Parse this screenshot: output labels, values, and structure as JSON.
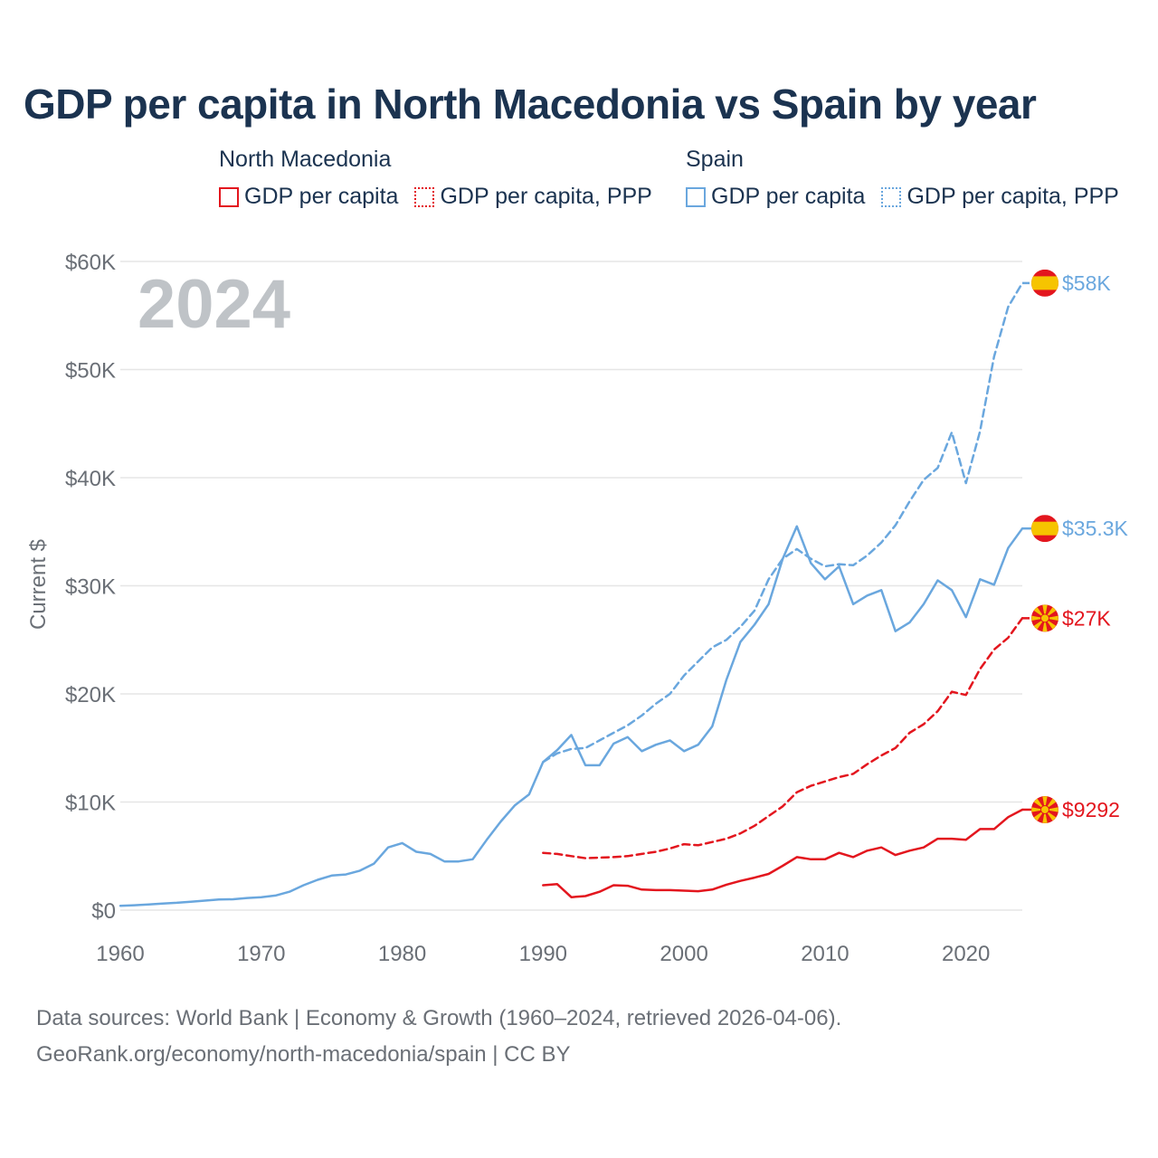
{
  "title": "GDP per capita in North Macedonia vs Spain by year",
  "legend": {
    "north_macedonia": {
      "name": "North Macedonia",
      "gdp": "GDP per capita",
      "ppp": "GDP per capita, PPP"
    },
    "spain": {
      "name": "Spain",
      "gdp": "GDP per capita",
      "ppp": "GDP per capita, PPP"
    }
  },
  "year_watermark": "2024",
  "footer": {
    "line1": "Data sources: World Bank | Economy & Growth (1960–2024, retrieved 2026-04-06).",
    "line2": "GeoRank.org/economy/north-macedonia/spain | CC BY"
  },
  "colors": {
    "north_macedonia": "#e3161e",
    "spain": "#6aa7de",
    "grid": "#e6e6e6",
    "axis_text": "#6a6f76",
    "watermark": "#bfc3c7"
  },
  "chart_data": {
    "type": "line",
    "title": "GDP per capita in North Macedonia vs Spain by year",
    "xlabel": "",
    "ylabel": "Current $",
    "xlim": [
      1960,
      2024
    ],
    "ylim": [
      0,
      60000
    ],
    "x_ticks": [
      1960,
      1970,
      1980,
      1990,
      2000,
      2010,
      2020
    ],
    "x_tick_labels": [
      "1960",
      "1970",
      "1980",
      "1990",
      "2000",
      "2010",
      "2020"
    ],
    "y_ticks": [
      0,
      10000,
      20000,
      30000,
      40000,
      50000,
      60000
    ],
    "y_tick_labels": [
      "$0",
      "$10K",
      "$20K",
      "$30K",
      "$40K",
      "$50K",
      "$60K"
    ],
    "series": [
      {
        "name": "Spain GDP per capita, PPP",
        "country": "spain",
        "style": "dashed",
        "end_label": "$58K",
        "x": [
          1990,
          1991,
          1992,
          1993,
          1994,
          1995,
          1996,
          1997,
          1998,
          1999,
          2000,
          2001,
          2002,
          2003,
          2004,
          2005,
          2006,
          2007,
          2008,
          2009,
          2010,
          2011,
          2012,
          2013,
          2014,
          2015,
          2016,
          2017,
          2018,
          2019,
          2020,
          2021,
          2022,
          2023,
          2024
        ],
        "values": [
          13700,
          14500,
          14900,
          15000,
          15700,
          16400,
          17100,
          18000,
          19100,
          20000,
          21700,
          23000,
          24300,
          25000,
          26200,
          27700,
          30600,
          32500,
          33400,
          32500,
          31800,
          32000,
          31900,
          32800,
          34000,
          35600,
          37800,
          39800,
          40900,
          44200,
          39500,
          44300,
          51200,
          55800,
          58000
        ]
      },
      {
        "name": "Spain GDP per capita",
        "country": "spain",
        "style": "solid",
        "end_label": "$35.3K",
        "x": [
          1960,
          1961,
          1962,
          1963,
          1964,
          1965,
          1966,
          1967,
          1968,
          1969,
          1970,
          1971,
          1972,
          1973,
          1974,
          1975,
          1976,
          1977,
          1978,
          1979,
          1980,
          1981,
          1982,
          1983,
          1984,
          1985,
          1986,
          1987,
          1988,
          1989,
          1990,
          1991,
          1992,
          1993,
          1994,
          1995,
          1996,
          1997,
          1998,
          1999,
          2000,
          2001,
          2002,
          2003,
          2004,
          2005,
          2006,
          2007,
          2008,
          2009,
          2010,
          2011,
          2012,
          2013,
          2014,
          2015,
          2016,
          2017,
          2018,
          2019,
          2020,
          2021,
          2022,
          2023,
          2024
        ],
        "values": [
          400,
          450,
          530,
          610,
          680,
          780,
          880,
          980,
          1000,
          1120,
          1200,
          1350,
          1700,
          2300,
          2800,
          3200,
          3300,
          3650,
          4300,
          5800,
          6200,
          5400,
          5200,
          4500,
          4500,
          4700,
          6500,
          8200,
          9700,
          10700,
          13700,
          14800,
          16200,
          13400,
          13400,
          15400,
          16000,
          14700,
          15300,
          15700,
          14700,
          15300,
          17000,
          21300,
          24800,
          26400,
          28300,
          32500,
          35500,
          32100,
          30600,
          31800,
          28300,
          29100,
          29600,
          25800,
          26600,
          28300,
          30500,
          29600,
          27100,
          30600,
          30100,
          33500,
          35300
        ]
      },
      {
        "name": "North Macedonia GDP per capita, PPP",
        "country": "north_macedonia",
        "style": "dashed",
        "end_label": "$27K",
        "x": [
          1990,
          1991,
          1992,
          1993,
          1994,
          1995,
          1996,
          1997,
          1998,
          1999,
          2000,
          2001,
          2002,
          2003,
          2004,
          2005,
          2006,
          2007,
          2008,
          2009,
          2010,
          2011,
          2012,
          2013,
          2014,
          2015,
          2016,
          2017,
          2018,
          2019,
          2020,
          2021,
          2022,
          2023,
          2024
        ],
        "values": [
          5300,
          5200,
          5000,
          4800,
          4850,
          4900,
          5000,
          5200,
          5400,
          5700,
          6100,
          6000,
          6300,
          6600,
          7100,
          7800,
          8700,
          9600,
          10900,
          11500,
          11900,
          12300,
          12600,
          13500,
          14300,
          15000,
          16400,
          17200,
          18400,
          20200,
          19900,
          22300,
          24100,
          25200,
          27000
        ]
      },
      {
        "name": "North Macedonia GDP per capita",
        "country": "north_macedonia",
        "style": "solid",
        "end_label": "$9292",
        "x": [
          1990,
          1991,
          1992,
          1993,
          1994,
          1995,
          1996,
          1997,
          1998,
          1999,
          2000,
          2001,
          2002,
          2003,
          2004,
          2005,
          2006,
          2007,
          2008,
          2009,
          2010,
          2011,
          2012,
          2013,
          2014,
          2015,
          2016,
          2017,
          2018,
          2019,
          2020,
          2021,
          2022,
          2023,
          2024
        ],
        "values": [
          2300,
          2400,
          1200,
          1300,
          1700,
          2300,
          2250,
          1900,
          1850,
          1850,
          1800,
          1750,
          1900,
          2350,
          2700,
          3000,
          3350,
          4100,
          4900,
          4700,
          4700,
          5300,
          4900,
          5500,
          5800,
          5100,
          5500,
          5800,
          6600,
          6600,
          6500,
          7500,
          7500,
          8600,
          9292
        ]
      }
    ]
  }
}
